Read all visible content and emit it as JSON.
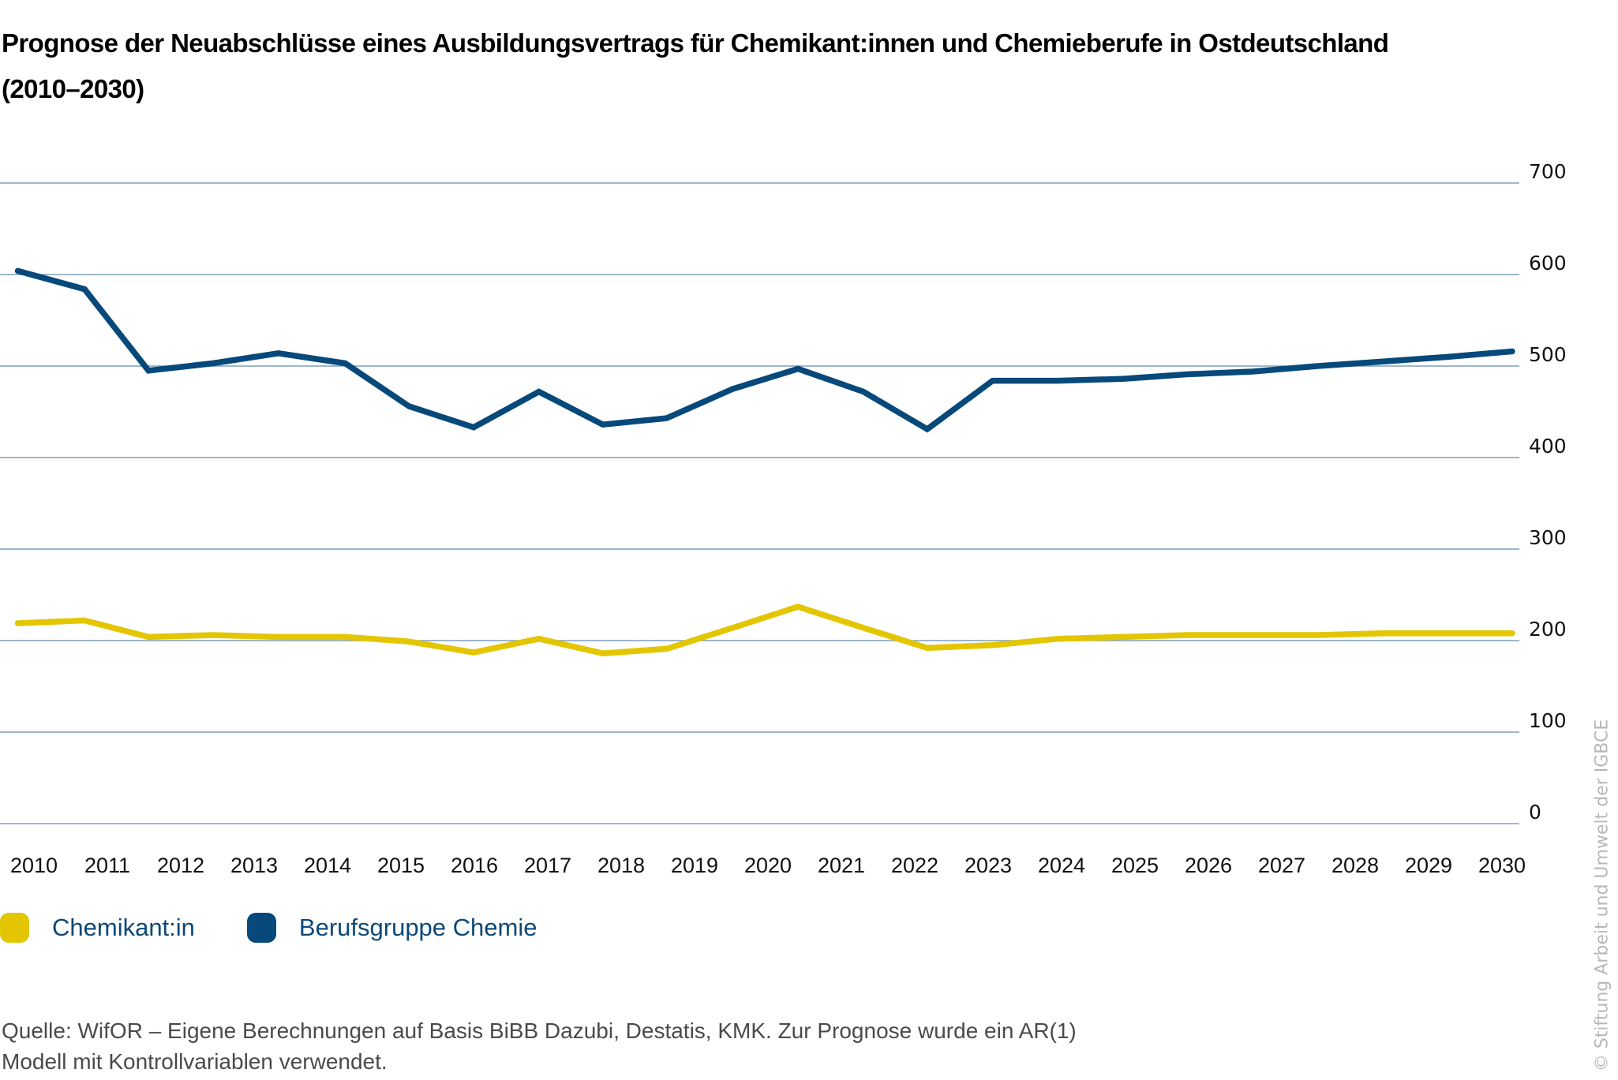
{
  "title_line1": "Prognose der Neuabschlüsse eines Ausbildungsvertrags für Chemikant:innen und Chemieberufe in Ostdeutschland",
  "title_line2": "(2010–2030)",
  "legend": [
    {
      "label": "Chemikant:in",
      "color": "#e3c600"
    },
    {
      "label": "Berufsgruppe Chemie",
      "color": "#06497a"
    }
  ],
  "source_line1": "Quelle: WifOR – Eigene Berechnungen auf Basis BiBB Dazubi, Destatis, KMK. Zur Prognose wurde ein AR(1)",
  "source_line2": "Modell mit Kontrollvariablen verwendet.",
  "copyright": "© Stiftung Arbeit und Umwelt der IGBCE",
  "colors": {
    "gridline": "#7f9fb8",
    "yellow": "#e3c600",
    "blue": "#06497a"
  },
  "chart_data": {
    "type": "line",
    "title": "Prognose der Neuabschlüsse eines Ausbildungsvertrags für Chemikant:innen und Chemieberufe in Ostdeutschland (2010–2030)",
    "xlabel": "",
    "ylabel": "",
    "x_tick_labels": [
      "2010",
      "2011",
      "2012",
      "2013",
      "2014",
      "2015",
      "2016",
      "2017",
      "2018",
      "2019",
      "2020",
      "2021",
      "2022",
      "2023",
      "2024",
      "2025",
      "2026",
      "2027",
      "2028",
      "2029",
      "2030"
    ],
    "y_ticks": [
      0,
      100,
      200,
      300,
      400,
      500,
      600,
      700
    ],
    "ylim": [
      0,
      700
    ],
    "xlim": [
      2010,
      2030
    ],
    "grid": "horizontal",
    "y_axis_side": "right",
    "legend_position": "bottom-left",
    "x": [
      2009.78,
      2010.69,
      2011.56,
      2012.44,
      2013.33,
      2014.24,
      2015.11,
      2015.99,
      2016.88,
      2017.75,
      2018.62,
      2019.52,
      2020.41,
      2021.3,
      2022.17,
      2023.06,
      2023.95,
      2024.83,
      2025.72,
      2026.6,
      2027.49,
      2028.38,
      2029.26,
      2030.14
    ],
    "series": [
      {
        "name": "Chemikant:in",
        "color": "#e3c600",
        "values": [
          219,
          222,
          204,
          206,
          204,
          204,
          199,
          187,
          202,
          186,
          191,
          214,
          237,
          214,
          192,
          195,
          202,
          204,
          206,
          206,
          206,
          208,
          208,
          208
        ]
      },
      {
        "name": "Berufsgruppe Chemie",
        "color": "#06497a",
        "values": [
          604,
          584,
          495,
          503,
          514,
          503,
          456,
          433,
          472,
          436,
          443,
          475,
          497,
          472,
          431,
          484,
          484,
          486,
          491,
          494,
          500,
          505,
          510,
          516
        ]
      }
    ]
  }
}
